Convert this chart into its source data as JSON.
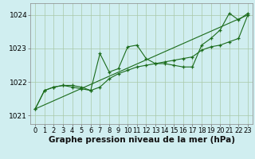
{
  "bg_color": "#d0eef0",
  "grid_color": "#a8c8a8",
  "line_color": "#1a6b1a",
  "marker_color": "#1a6b1a",
  "xlabel": "Graphe pression niveau de la mer (hPa)",
  "xlabel_fontsize": 7.5,
  "ylabel_fontsize": 6.5,
  "tick_fontsize": 6,
  "xlim": [
    -0.5,
    23.5
  ],
  "ylim": [
    1020.75,
    1024.35
  ],
  "yticks": [
    1021,
    1022,
    1023,
    1024
  ],
  "xticks": [
    0,
    1,
    2,
    3,
    4,
    5,
    6,
    7,
    8,
    9,
    10,
    11,
    12,
    13,
    14,
    15,
    16,
    17,
    18,
    19,
    20,
    21,
    22,
    23
  ],
  "series1_x": [
    0,
    1,
    2,
    3,
    4,
    5,
    6,
    7,
    8,
    9,
    10,
    11,
    12,
    13,
    14,
    15,
    16,
    17,
    18,
    19,
    20,
    21,
    22,
    23
  ],
  "series1_y": [
    1021.2,
    1021.75,
    1021.85,
    1021.9,
    1021.9,
    1021.85,
    1021.75,
    1022.85,
    1022.3,
    1022.4,
    1023.05,
    1023.1,
    1022.7,
    1022.55,
    1022.55,
    1022.5,
    1022.45,
    1022.45,
    1023.1,
    1023.3,
    1023.55,
    1024.05,
    1023.85,
    1024.05
  ],
  "series2_x": [
    0,
    1,
    2,
    3,
    4,
    5,
    6,
    7,
    8,
    9,
    10,
    11,
    12,
    13,
    14,
    15,
    16,
    17,
    18,
    19,
    20,
    21,
    22,
    23
  ],
  "series2_y": [
    1021.2,
    1021.75,
    1021.85,
    1021.9,
    1021.85,
    1021.8,
    1021.75,
    1021.85,
    1022.1,
    1022.25,
    1022.35,
    1022.45,
    1022.5,
    1022.55,
    1022.6,
    1022.65,
    1022.7,
    1022.75,
    1022.95,
    1023.05,
    1023.1,
    1023.2,
    1023.3,
    1024.0
  ],
  "series3_x": [
    0,
    23
  ],
  "series3_y": [
    1021.2,
    1024.0
  ]
}
